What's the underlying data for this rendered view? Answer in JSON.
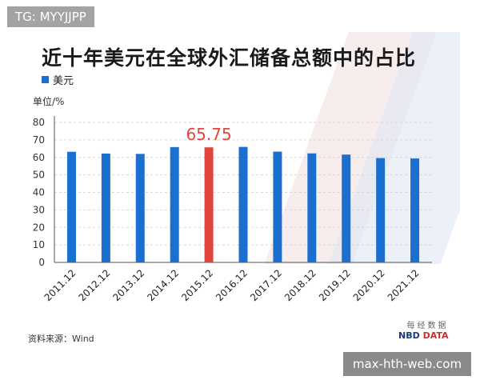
{
  "watermark_top": "TG: MYYJJPP",
  "watermark_bottom": "max-hth-web.com",
  "chart_data": {
    "type": "bar",
    "title": "近十年美元在全球外汇储备总额中的占比",
    "legend": [
      "美元"
    ],
    "ylabel": "单位/%",
    "ylim": [
      0,
      80
    ],
    "yticks": [
      0,
      10,
      20,
      30,
      40,
      50,
      60,
      70,
      80
    ],
    "grid": true,
    "categories": [
      "2011.12",
      "2012.12",
      "2013.12",
      "2014.12",
      "2015.12",
      "2016.12",
      "2017.12",
      "2018.12",
      "2019.12",
      "2020.12",
      "2021.12"
    ],
    "values": [
      63.2,
      62.2,
      62.0,
      65.9,
      65.75,
      66.0,
      63.3,
      62.3,
      61.6,
      59.6,
      59.4
    ],
    "highlight_index": 4,
    "highlight_label": "65.75",
    "colors": {
      "bar": "#1b6fcf",
      "highlight": "#e2453c",
      "grid": "#d6d6d6"
    },
    "source": "资料来源：Wind",
    "brand_cn": "每经数据",
    "brand_en_1": "NBD ",
    "brand_en_2": "DATA"
  }
}
